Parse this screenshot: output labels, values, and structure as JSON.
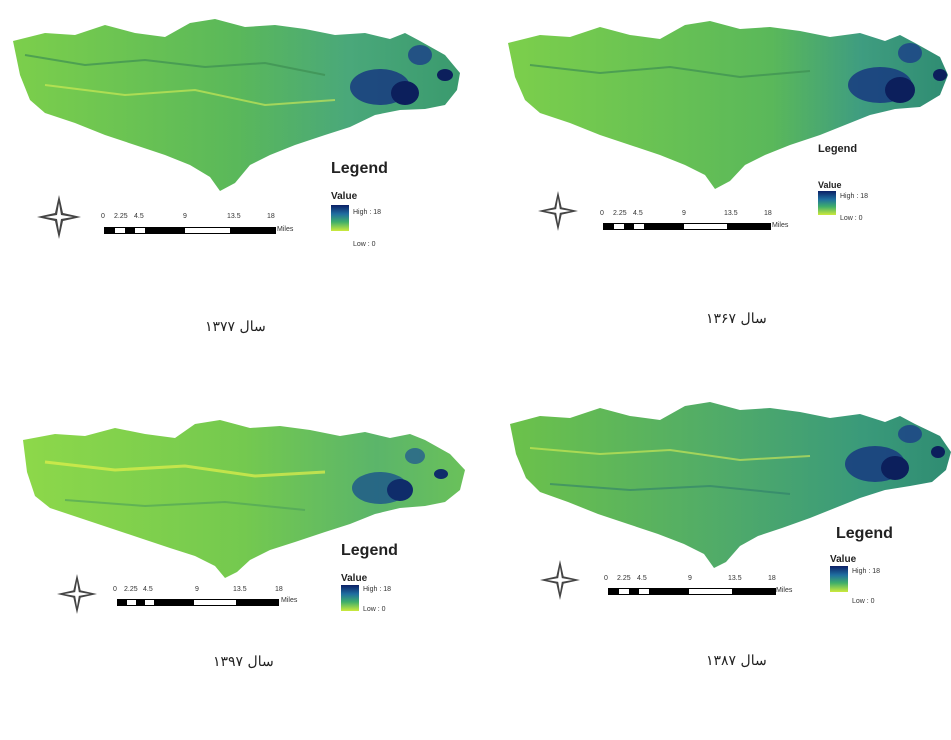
{
  "panels": [
    {
      "id": "top-left",
      "legend_title": "Legend",
      "legend_value_label": "Value",
      "legend_high": "High : 18",
      "legend_low": "Low : 0",
      "scale_ticks": [
        "0",
        "2.25",
        "4.5",
        "9",
        "13.5",
        "18"
      ],
      "scale_unit": "Miles",
      "caption": "سال ۱۳۷۷"
    },
    {
      "id": "top-right",
      "legend_title": "Legend",
      "legend_value_label": "Value",
      "legend_high": "High : 18",
      "legend_low": "Low : 0",
      "scale_ticks": [
        "0",
        "2.25",
        "4.5",
        "9",
        "13.5",
        "18"
      ],
      "scale_unit": "Miles",
      "caption": "سال ۱۳۶۷"
    },
    {
      "id": "bottom-left",
      "legend_title": "Legend",
      "legend_value_label": "Value",
      "legend_high": "High : 18",
      "legend_low": "Low : 0",
      "scale_ticks": [
        "0",
        "2.25",
        "4.5",
        "9",
        "13.5",
        "18"
      ],
      "scale_unit": "Miles",
      "caption": "سال ۱۳۹۷"
    },
    {
      "id": "bottom-right",
      "legend_title": "Legend",
      "legend_value_label": "Value",
      "legend_high": "High : 18",
      "legend_low": "Low : 0",
      "scale_ticks": [
        "0",
        "2.25",
        "4.5",
        "9",
        "13.5",
        "18"
      ],
      "scale_unit": "Miles",
      "caption": "سال ۱۳۸۷"
    }
  ],
  "colors": {
    "ramp_high": "#0b1f66",
    "ramp_mid": "#2f9a7a",
    "ramp_low": "#cdea3c",
    "base_fill": "#6cc24a"
  },
  "icons": {
    "north_arrow": "compass-rose-icon"
  }
}
